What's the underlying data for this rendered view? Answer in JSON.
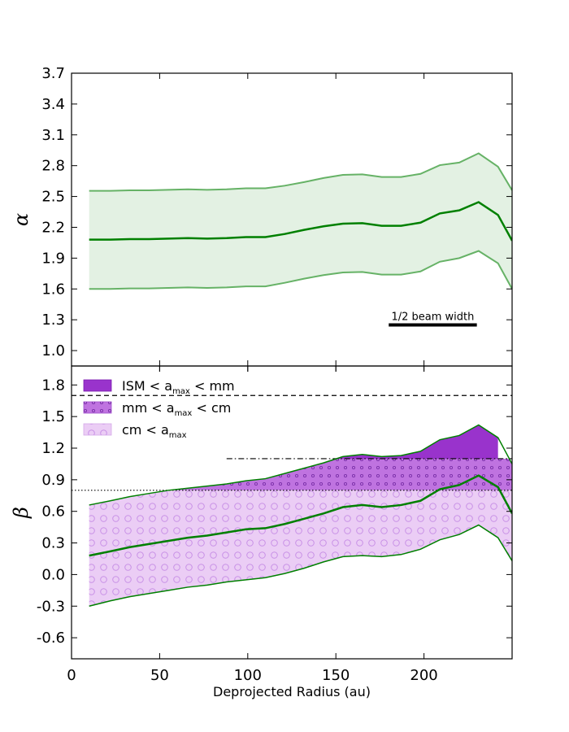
{
  "chart_data": [
    {
      "type": "line",
      "panel": "top",
      "ylabel": "α",
      "ylim": [
        0.85,
        3.7
      ],
      "yticks": [
        1.0,
        1.3,
        1.6,
        1.9,
        2.2,
        2.5,
        2.8,
        3.1,
        3.4,
        3.7
      ],
      "ytick_labels": [
        "1.0",
        "1.3",
        "1.6",
        "1.9",
        "2.2",
        "2.5",
        "2.8",
        "3.1",
        "3.4",
        "3.7"
      ],
      "x": [
        10,
        22,
        33,
        44,
        55,
        66,
        77,
        88,
        99,
        110,
        121,
        132,
        143,
        154,
        165,
        176,
        187,
        198,
        209,
        220,
        231,
        242,
        250
      ],
      "series": [
        {
          "name": "alpha",
          "values": [
            2.08,
            2.08,
            2.085,
            2.085,
            2.09,
            2.095,
            2.09,
            2.095,
            2.105,
            2.105,
            2.135,
            2.175,
            2.21,
            2.235,
            2.24,
            2.215,
            2.215,
            2.245,
            2.335,
            2.365,
            2.445,
            2.32,
            2.07
          ],
          "color": "#008000"
        },
        {
          "name": "alpha_upper",
          "values": [
            2.555,
            2.555,
            2.56,
            2.56,
            2.565,
            2.57,
            2.565,
            2.57,
            2.58,
            2.58,
            2.605,
            2.64,
            2.68,
            2.71,
            2.715,
            2.69,
            2.69,
            2.72,
            2.805,
            2.83,
            2.92,
            2.79,
            2.56
          ],
          "color": "#66b266"
        },
        {
          "name": "alpha_lower",
          "values": [
            1.6,
            1.6,
            1.605,
            1.605,
            1.61,
            1.615,
            1.61,
            1.615,
            1.625,
            1.625,
            1.66,
            1.7,
            1.735,
            1.76,
            1.765,
            1.74,
            1.74,
            1.77,
            1.865,
            1.9,
            1.97,
            1.85,
            1.6
          ],
          "color": "#66b266"
        }
      ],
      "band_color": "#e3f1e3",
      "annotation": {
        "text": "1/2 beam width",
        "x_range": [
          180,
          230
        ]
      }
    },
    {
      "type": "line",
      "panel": "bottom",
      "ylabel": "β",
      "xlabel": "Deprojected Radius (au)",
      "xlim": [
        0,
        250
      ],
      "ylim": [
        -0.8,
        1.98
      ],
      "xticks": [
        0,
        50,
        100,
        150,
        200
      ],
      "xtick_labels": [
        "0",
        "50",
        "100",
        "150",
        "200"
      ],
      "yticks": [
        -0.6,
        -0.3,
        0.0,
        0.3,
        0.6,
        0.9,
        1.2,
        1.5,
        1.8
      ],
      "ytick_labels": [
        "-0.6",
        "-0.3",
        "0.0",
        "0.3",
        "0.6",
        "0.9",
        "1.2",
        "1.5",
        "1.8"
      ],
      "x": [
        10,
        22,
        33,
        44,
        55,
        66,
        77,
        88,
        99,
        110,
        121,
        132,
        143,
        154,
        165,
        176,
        187,
        198,
        209,
        220,
        231,
        242,
        250
      ],
      "series": [
        {
          "name": "beta",
          "values": [
            0.18,
            0.22,
            0.26,
            0.29,
            0.32,
            0.35,
            0.37,
            0.4,
            0.43,
            0.44,
            0.48,
            0.53,
            0.58,
            0.64,
            0.66,
            0.64,
            0.66,
            0.7,
            0.81,
            0.85,
            0.94,
            0.83,
            0.58
          ],
          "color": "#008000"
        },
        {
          "name": "beta_upper",
          "values": [
            0.66,
            0.7,
            0.74,
            0.77,
            0.8,
            0.82,
            0.84,
            0.86,
            0.89,
            0.91,
            0.96,
            1.01,
            1.06,
            1.12,
            1.14,
            1.12,
            1.13,
            1.17,
            1.28,
            1.32,
            1.42,
            1.3,
            1.05
          ],
          "color": "#008000"
        },
        {
          "name": "beta_lower",
          "values": [
            -0.3,
            -0.25,
            -0.21,
            -0.18,
            -0.15,
            -0.12,
            -0.1,
            -0.07,
            -0.05,
            -0.03,
            0.01,
            0.06,
            0.12,
            0.17,
            0.18,
            0.17,
            0.19,
            0.24,
            0.33,
            0.38,
            0.47,
            0.35,
            0.13
          ],
          "color": "#008000"
        }
      ],
      "reference_lines": [
        {
          "y": 1.7,
          "style": "dashed"
        },
        {
          "y": 1.1,
          "style": "dashdot",
          "xmin": 88
        },
        {
          "y": 0.8,
          "style": "dotted",
          "xmax": 66
        }
      ],
      "region_colors": {
        "ism_mm": "#9933cc",
        "mm_cm": "#bf73e0",
        "cm": "#ebcdf5"
      },
      "legend": [
        {
          "label": "ISM < a",
          "sub": "max",
          "label_end": " < mm",
          "color": "#9933cc"
        },
        {
          "label": "mm < a",
          "sub": "max",
          "label_end": " < cm",
          "color": "#bf73e0"
        },
        {
          "label": "cm < a",
          "sub": "max",
          "label_end": "",
          "color": "#ebcdf5"
        }
      ]
    }
  ]
}
